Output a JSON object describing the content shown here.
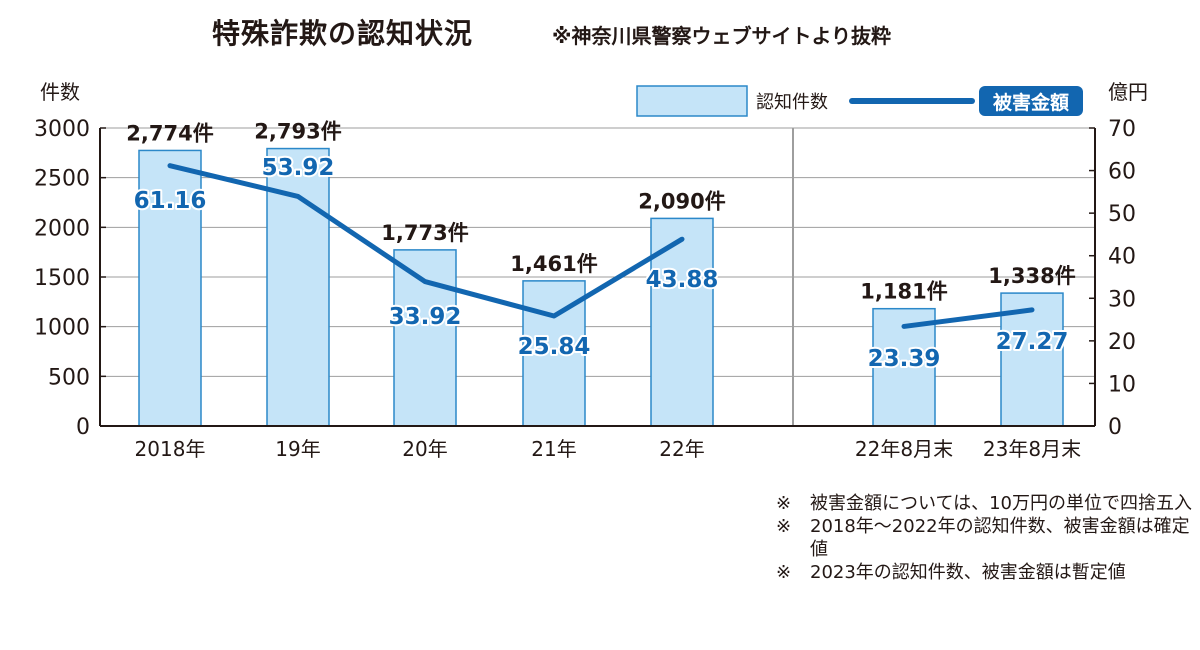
{
  "title": "特殊詐欺の認知状況",
  "subtitle": "※神奈川県警察ウェブサイトより抜粋",
  "colors": {
    "bar_fill": "#c5e4f8",
    "bar_stroke": "#2b88c9",
    "line": "#1266b0",
    "label_fill": "#1266b0",
    "grid": "#9e9e9e",
    "axis": "#231815"
  },
  "chart_data": {
    "type": "bar",
    "categories": [
      "2018年",
      "19年",
      "20年",
      "21年",
      "22年",
      "22年8月末",
      "23年8月末"
    ],
    "series": [
      {
        "name": "認知件数",
        "type": "bar",
        "axis": "left",
        "values": [
          2774,
          2793,
          1773,
          1461,
          2090,
          1181,
          1338
        ],
        "labels": [
          "2,774件",
          "2,793件",
          "1,773件",
          "1,461件",
          "2,090件",
          "1,181件",
          "1,338件"
        ]
      },
      {
        "name": "被害金額",
        "type": "line",
        "axis": "right",
        "values": [
          61.16,
          53.92,
          33.92,
          25.84,
          43.88,
          23.39,
          27.27
        ],
        "labels": [
          "61.16",
          "53.92",
          "33.92",
          "25.84",
          "43.88",
          "23.39",
          "27.27"
        ],
        "segments": [
          [
            0,
            1,
            2,
            3,
            4
          ],
          [
            5,
            6
          ]
        ]
      }
    ],
    "ylabel": "件数",
    "y2label": "億円",
    "ylim": [
      0,
      3000
    ],
    "y2lim": [
      0,
      70
    ],
    "yticks": [
      "0",
      "500",
      "1000",
      "1500",
      "2000",
      "2500",
      "3000"
    ],
    "y2ticks": [
      "0",
      "10",
      "20",
      "30",
      "40",
      "50",
      "60",
      "70"
    ],
    "grid": true,
    "legend_position": "top-right"
  },
  "notes": [
    {
      "mark": "※",
      "text": "被害金額については、10万円の単位で四捨五入"
    },
    {
      "mark": "※",
      "text": "2018年～2022年の認知件数、被害金額は確定値"
    },
    {
      "mark": "※",
      "text": "2023年の認知件数、被害金額は暫定値"
    }
  ]
}
